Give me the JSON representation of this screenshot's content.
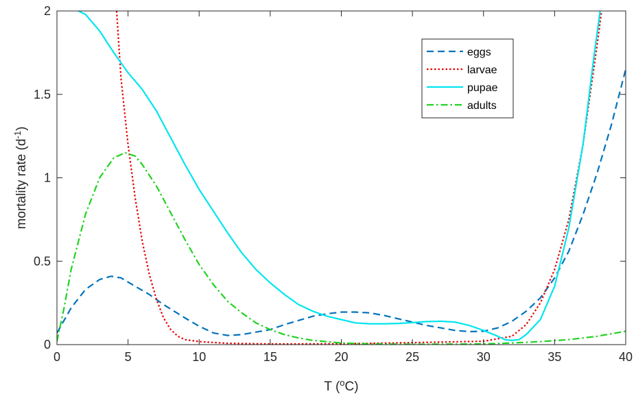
{
  "chart_data": {
    "type": "line",
    "xlabel": "T (",
    "xlabel_sup": "o",
    "xlabel_end": "C)",
    "ylabel": "mortality rate (d",
    "ylabel_sup": "-1",
    "ylabel_end": ")",
    "xlim": [
      0,
      40
    ],
    "ylim": [
      0,
      2
    ],
    "xticks": [
      0,
      5,
      10,
      15,
      20,
      25,
      30,
      35,
      40
    ],
    "yticks": [
      0,
      0.5,
      1,
      1.5,
      2
    ],
    "xtick_labels": [
      "0",
      "5",
      "10",
      "15",
      "20",
      "25",
      "30",
      "35",
      "40"
    ],
    "ytick_labels": [
      "0",
      "0.5",
      "1",
      "1.5",
      "2"
    ],
    "grid": false,
    "legend_position": "top-right",
    "series": [
      {
        "name": "eggs",
        "color": "#0072BD",
        "style": "dashed",
        "points": [
          [
            0,
            0.07
          ],
          [
            1,
            0.22
          ],
          [
            2,
            0.33
          ],
          [
            3,
            0.39
          ],
          [
            3.8,
            0.41
          ],
          [
            4.5,
            0.4
          ],
          [
            5.5,
            0.35
          ],
          [
            6.5,
            0.3
          ],
          [
            7.5,
            0.24
          ],
          [
            9,
            0.16
          ],
          [
            10,
            0.11
          ],
          [
            11,
            0.07
          ],
          [
            12,
            0.055
          ],
          [
            13,
            0.06
          ],
          [
            14,
            0.075
          ],
          [
            15,
            0.09
          ],
          [
            16,
            0.12
          ],
          [
            17,
            0.145
          ],
          [
            18,
            0.17
          ],
          [
            19,
            0.185
          ],
          [
            20,
            0.195
          ],
          [
            21,
            0.195
          ],
          [
            22,
            0.19
          ],
          [
            23,
            0.175
          ],
          [
            24,
            0.155
          ],
          [
            25,
            0.135
          ],
          [
            26,
            0.115
          ],
          [
            27,
            0.1
          ],
          [
            28,
            0.085
          ],
          [
            29,
            0.078
          ],
          [
            30,
            0.08
          ],
          [
            31,
            0.1
          ],
          [
            32,
            0.14
          ],
          [
            33,
            0.2
          ],
          [
            34,
            0.28
          ],
          [
            35,
            0.4
          ],
          [
            36,
            0.56
          ],
          [
            37,
            0.78
          ],
          [
            38,
            1.03
          ],
          [
            39,
            1.32
          ],
          [
            40,
            1.65
          ]
        ]
      },
      {
        "name": "larvae",
        "color": "#E60000",
        "style": "dotted",
        "points": [
          [
            4.2,
            2.0
          ],
          [
            4.5,
            1.6
          ],
          [
            5,
            1.2
          ],
          [
            5.5,
            0.88
          ],
          [
            6,
            0.62
          ],
          [
            6.5,
            0.42
          ],
          [
            7,
            0.27
          ],
          [
            7.5,
            0.16
          ],
          [
            8,
            0.09
          ],
          [
            8.5,
            0.05
          ],
          [
            9,
            0.03
          ],
          [
            10,
            0.018
          ],
          [
            12,
            0.008
          ],
          [
            15,
            0.004
          ],
          [
            20,
            0.005
          ],
          [
            25,
            0.012
          ],
          [
            30,
            0.02
          ],
          [
            32,
            0.05
          ],
          [
            33,
            0.12
          ],
          [
            34,
            0.25
          ],
          [
            35,
            0.45
          ],
          [
            36,
            0.75
          ],
          [
            37,
            1.2
          ],
          [
            38,
            1.8
          ],
          [
            38.3,
            2.0
          ]
        ]
      },
      {
        "name": "pupae",
        "color": "#00E5EE",
        "style": "solid",
        "points": [
          [
            1.5,
            2.0
          ],
          [
            2,
            1.98
          ],
          [
            3,
            1.88
          ],
          [
            4,
            1.75
          ],
          [
            5,
            1.63
          ],
          [
            6,
            1.53
          ],
          [
            7,
            1.4
          ],
          [
            8,
            1.24
          ],
          [
            9,
            1.08
          ],
          [
            10,
            0.93
          ],
          [
            11,
            0.8
          ],
          [
            12,
            0.67
          ],
          [
            13,
            0.55
          ],
          [
            14,
            0.45
          ],
          [
            15,
            0.37
          ],
          [
            16,
            0.3
          ],
          [
            17,
            0.24
          ],
          [
            18,
            0.2
          ],
          [
            19,
            0.17
          ],
          [
            20,
            0.15
          ],
          [
            21,
            0.13
          ],
          [
            22,
            0.125
          ],
          [
            23,
            0.125
          ],
          [
            24,
            0.127
          ],
          [
            25,
            0.132
          ],
          [
            26,
            0.138
          ],
          [
            27,
            0.14
          ],
          [
            28,
            0.135
          ],
          [
            29,
            0.115
          ],
          [
            30,
            0.085
          ],
          [
            31,
            0.05
          ],
          [
            31.5,
            0.03
          ],
          [
            32,
            0.025
          ],
          [
            32.5,
            0.03
          ],
          [
            33,
            0.06
          ],
          [
            34,
            0.15
          ],
          [
            35,
            0.35
          ],
          [
            36,
            0.7
          ],
          [
            37,
            1.2
          ],
          [
            37.8,
            1.75
          ],
          [
            38.2,
            2.0
          ]
        ]
      },
      {
        "name": "adults",
        "color": "#1FD21F",
        "style": "dashdot",
        "points": [
          [
            0,
            0.02
          ],
          [
            0.5,
            0.22
          ],
          [
            1,
            0.45
          ],
          [
            2,
            0.78
          ],
          [
            3,
            1.0
          ],
          [
            4,
            1.12
          ],
          [
            4.8,
            1.15
          ],
          [
            5.5,
            1.13
          ],
          [
            6,
            1.08
          ],
          [
            7,
            0.95
          ],
          [
            8,
            0.79
          ],
          [
            9,
            0.63
          ],
          [
            10,
            0.48
          ],
          [
            11,
            0.36
          ],
          [
            12,
            0.26
          ],
          [
            13,
            0.19
          ],
          [
            14,
            0.13
          ],
          [
            15,
            0.09
          ],
          [
            16,
            0.06
          ],
          [
            17,
            0.04
          ],
          [
            18,
            0.025
          ],
          [
            20,
            0.01
          ],
          [
            22,
            0.004
          ],
          [
            25,
            0.002
          ],
          [
            30,
            0.004
          ],
          [
            32,
            0.01
          ],
          [
            34,
            0.018
          ],
          [
            36,
            0.03
          ],
          [
            38,
            0.05
          ],
          [
            40,
            0.08
          ]
        ]
      }
    ]
  }
}
